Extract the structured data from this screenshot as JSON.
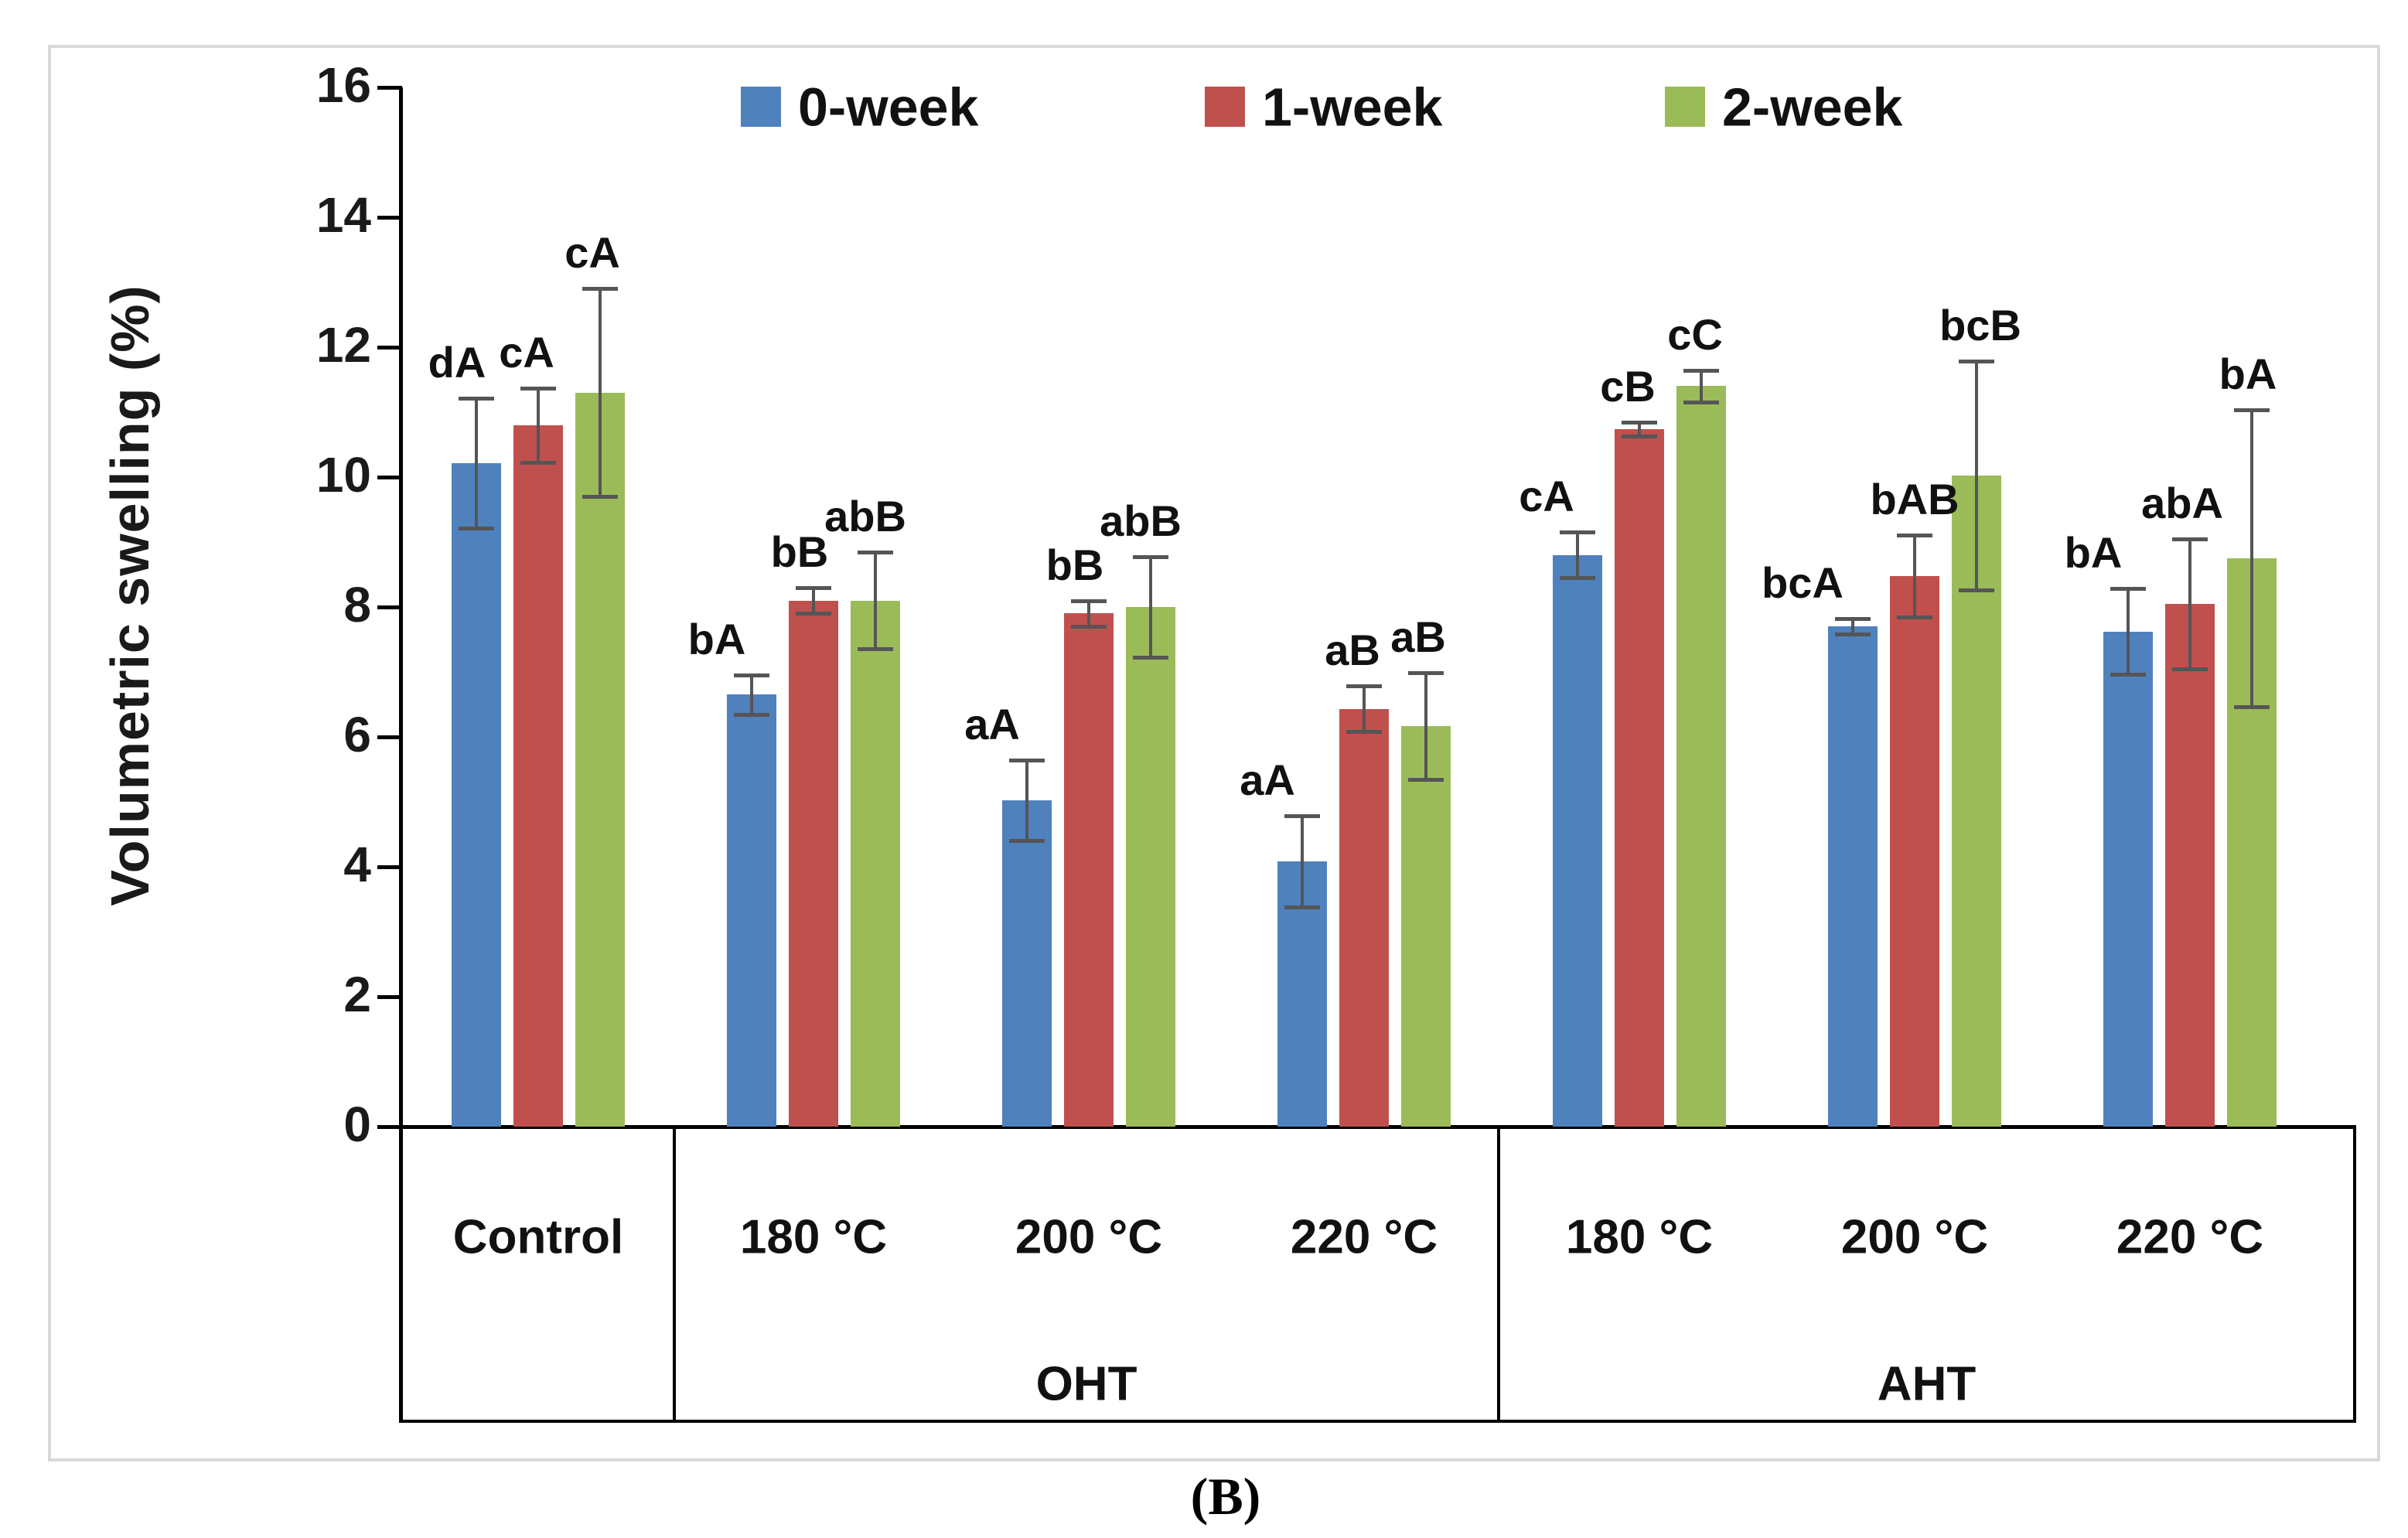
{
  "figure": {
    "caption": "(B)"
  },
  "colors": {
    "blue": "#4F81BD",
    "red": "#C0504D",
    "green": "#9BBB59",
    "error_bar": "#555555",
    "axis": "#000000",
    "figure_border": "#D9D9D9"
  },
  "chart_data": {
    "type": "bar",
    "title": "",
    "xlabel": "",
    "ylabel": "Volumetric swelling (%)",
    "ylim": [
      0,
      16
    ],
    "ytick_step": 2,
    "ytick_labels": [
      "0",
      "2",
      "4",
      "6",
      "8",
      "10",
      "12",
      "14",
      "16"
    ],
    "grid": false,
    "legend_position": "top-center",
    "categories": [
      "Control",
      "180 °C",
      "200 °C",
      "220 °C",
      "180 °C",
      "200 °C",
      "220 °C"
    ],
    "group_headers": [
      {
        "label": "Control",
        "span": 1,
        "show_text": false
      },
      {
        "label": "OHT",
        "span": 3,
        "show_text": true
      },
      {
        "label": "AHT",
        "span": 3,
        "show_text": true
      }
    ],
    "series": [
      {
        "name": "0-week",
        "color": "#4F81BD",
        "values": [
          10.22,
          6.65,
          5.02,
          4.08,
          8.8,
          7.7,
          7.62
        ],
        "errors": [
          1.0,
          0.3,
          0.62,
          0.7,
          0.35,
          0.12,
          0.66
        ],
        "sig_labels": [
          "dA",
          "bA",
          "aA",
          "aA",
          "cA",
          "bcA",
          "bA"
        ],
        "sig_dx": [
          -25,
          -45,
          -45,
          -45,
          -40,
          -65,
          -45
        ]
      },
      {
        "name": "1-week",
        "color": "#C0504D",
        "values": [
          10.8,
          8.1,
          7.9,
          6.43,
          10.74,
          8.48,
          8.05
        ],
        "errors": [
          0.57,
          0.2,
          0.2,
          0.35,
          0.11,
          0.63,
          1.0
        ],
        "sig_labels": [
          "cA",
          "bB",
          "bB",
          "aB",
          "cB",
          "bAB",
          "abA"
        ],
        "sig_dx": [
          -15,
          -18,
          -18,
          -15,
          -15,
          0,
          -10
        ]
      },
      {
        "name": "2-week",
        "color": "#9BBB59",
        "values": [
          11.3,
          8.1,
          8.0,
          6.17,
          11.4,
          10.02,
          8.75
        ],
        "errors": [
          1.6,
          0.74,
          0.77,
          0.82,
          0.24,
          1.76,
          2.28
        ],
        "sig_labels": [
          "cA",
          "abB",
          "abB",
          "aB",
          "cC",
          "bcB",
          "bA"
        ],
        "sig_dx": [
          -10,
          -13,
          -13,
          -10,
          -8,
          5,
          -5
        ]
      }
    ]
  }
}
